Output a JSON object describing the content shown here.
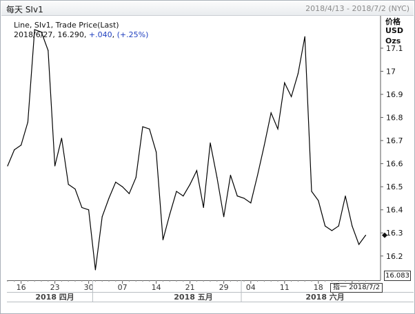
{
  "window": {
    "title": "每天 SIv1",
    "range": "2018/4/13 - 2018/7/2 (NYC)"
  },
  "legend": {
    "series": "Line, SIv1, Trade Price(Last)",
    "date": "2018/6/27",
    "price": "16.290",
    "change": "+.040",
    "change_pct": "(+.25%)"
  },
  "axis": {
    "unit_lines": [
      "价格",
      "USD",
      "Ozs"
    ],
    "last_price_label": "16.083",
    "cursor_date_label": "指一 2018/7/2"
  },
  "chart_data": {
    "type": "line",
    "title": "",
    "series": [
      {
        "name": "SIv1",
        "values": [
          16.59,
          16.66,
          16.68,
          16.78,
          17.18,
          17.17,
          17.09,
          16.59,
          16.71,
          16.51,
          16.49,
          16.41,
          16.4,
          16.14,
          16.37,
          16.45,
          16.52,
          16.5,
          16.47,
          16.54,
          16.76,
          16.75,
          16.65,
          16.27,
          16.38,
          16.48,
          16.46,
          16.51,
          16.57,
          16.41,
          16.69,
          16.54,
          16.37,
          16.55,
          16.46,
          16.45,
          16.43,
          16.55,
          16.68,
          16.82,
          16.75,
          16.95,
          16.89,
          16.99,
          17.15,
          16.48,
          16.44,
          16.33,
          16.31,
          16.33,
          16.46,
          16.33,
          16.25,
          16.29
        ]
      }
    ],
    "y_ticks": [
      16.2,
      16.3,
      16.4,
      16.5,
      16.6,
      16.7,
      16.8,
      16.9,
      17,
      17.1
    ],
    "y_tick_labels": [
      "16.2",
      "16.3",
      "16.4",
      "16.5",
      "16.6",
      "16.7",
      "16.8",
      "16.9",
      "17",
      "17.1"
    ],
    "ylim": [
      16.095,
      17.24
    ],
    "x_ticks": [
      {
        "label": "16",
        "index": 2
      },
      {
        "label": "23",
        "index": 7
      },
      {
        "label": "30",
        "index": 12
      },
      {
        "label": "07",
        "index": 17
      },
      {
        "label": "14",
        "index": 22
      },
      {
        "label": "21",
        "index": 27
      },
      {
        "label": "29",
        "index": 32
      },
      {
        "label": "04",
        "index": 36
      },
      {
        "label": "11",
        "index": 41
      },
      {
        "label": "18",
        "index": 46
      },
      {
        "label": "25",
        "index": 51
      }
    ],
    "months": [
      {
        "label": "2018 四月",
        "index": 7
      },
      {
        "label": "2018 五月",
        "index": 27.5
      },
      {
        "label": "2018 六月",
        "index": 47
      }
    ],
    "month_separators": [
      13,
      35
    ],
    "grid": false,
    "last_marker_value": 16.29
  }
}
